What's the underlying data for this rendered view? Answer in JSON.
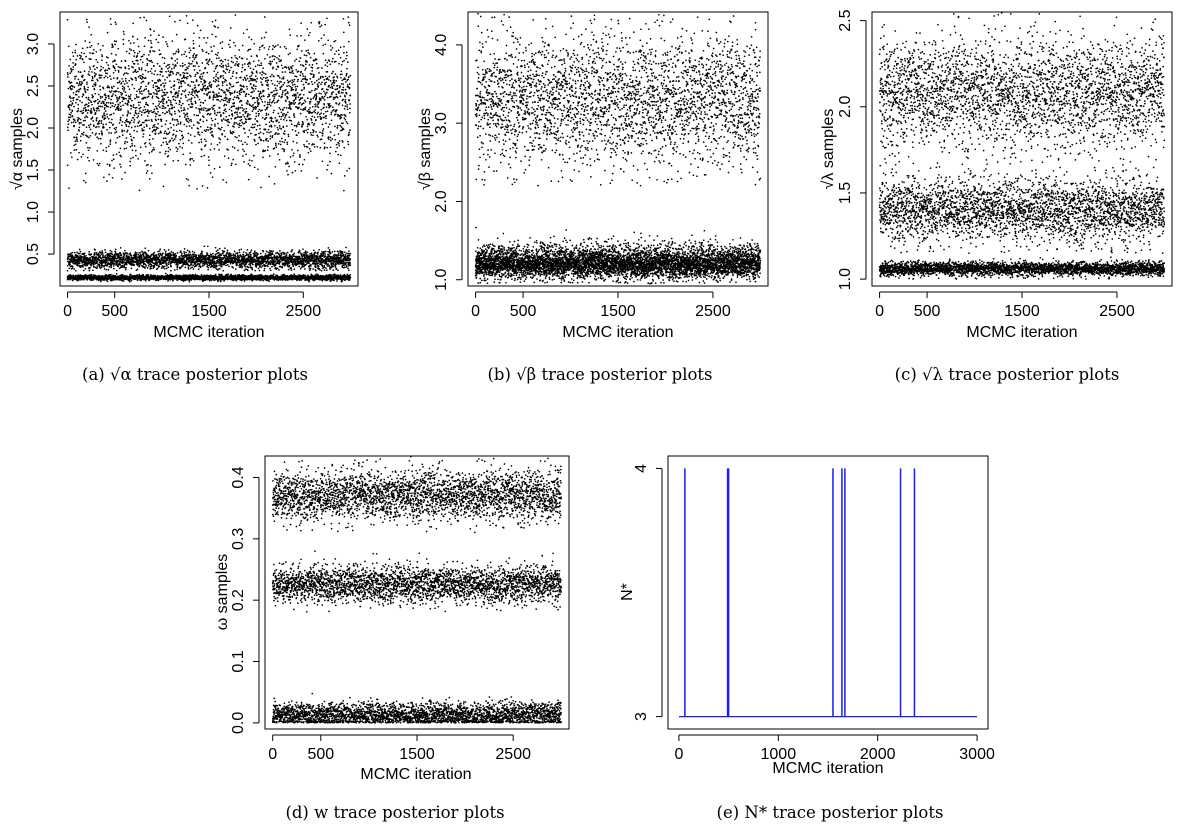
{
  "chart_data": [
    {
      "id": "a",
      "type": "scatter",
      "xlabel": "MCMC iteration",
      "ylabel": "√α samples",
      "caption": "(a) √α trace posterior plots",
      "xlim": [
        -80,
        3080
      ],
      "ylim": [
        0.12,
        3.38
      ],
      "xticks": [
        0,
        500,
        1500,
        2500
      ],
      "yticks": [
        0.5,
        1.0,
        1.5,
        2.0,
        2.5,
        3.0
      ],
      "ytick_labels": [
        "0.5",
        "1.0",
        "1.5",
        "2.0",
        "2.5",
        "3.0"
      ],
      "n_iterations": 3000,
      "color": "#000000",
      "bands": [
        {
          "center": 2.35,
          "spread": 0.38,
          "min": 1.25,
          "max": 3.35
        },
        {
          "center": 0.43,
          "spread": 0.05,
          "min": 0.3,
          "max": 0.62
        },
        {
          "center": 0.22,
          "spread": 0.015,
          "min": 0.17,
          "max": 0.27
        }
      ]
    },
    {
      "id": "b",
      "type": "scatter",
      "xlabel": "MCMC iteration",
      "ylabel": "√β samples",
      "caption": "(b) √β trace posterior plots",
      "xlim": [
        -80,
        3080
      ],
      "ylim": [
        0.92,
        4.42
      ],
      "xticks": [
        0,
        500,
        1500,
        2500
      ],
      "yticks": [
        1.0,
        2.0,
        3.0,
        4.0
      ],
      "ytick_labels": [
        "1.0",
        "2.0",
        "3.0",
        "4.0"
      ],
      "n_iterations": 3000,
      "color": "#000000",
      "bands": [
        {
          "center": 3.3,
          "spread": 0.42,
          "min": 2.2,
          "max": 4.4
        },
        {
          "center": 1.25,
          "spread": 0.11,
          "min": 0.95,
          "max": 1.75
        },
        {
          "center": 1.18,
          "spread": 0.08,
          "min": 0.95,
          "max": 1.5
        }
      ]
    },
    {
      "id": "c",
      "type": "scatter",
      "xlabel": "MCMC iteration",
      "ylabel": "√λ samples",
      "caption": "(c) √λ trace posterior plots",
      "xlim": [
        -80,
        3080
      ],
      "ylim": [
        0.96,
        2.55
      ],
      "xticks": [
        0,
        500,
        1500,
        2500
      ],
      "yticks": [
        1.0,
        1.5,
        2.0,
        2.5
      ],
      "ytick_labels": [
        "1.0",
        "1.5",
        "2.0",
        "2.5"
      ],
      "n_iterations": 3000,
      "color": "#000000",
      "bands": [
        {
          "center": 2.07,
          "spread": 0.16,
          "min": 1.6,
          "max": 2.55
        },
        {
          "center": 1.4,
          "spread": 0.09,
          "min": 1.15,
          "max": 1.72
        },
        {
          "center": 1.06,
          "spread": 0.02,
          "min": 1.0,
          "max": 1.13
        }
      ]
    },
    {
      "id": "d",
      "type": "scatter",
      "xlabel": "MCMC iteration",
      "ylabel": "ω samples",
      "caption": "(d) w trace posterior plots",
      "xlim": [
        -80,
        3080
      ],
      "ylim": [
        -0.01,
        0.435
      ],
      "xticks": [
        0,
        500,
        1500,
        2500
      ],
      "yticks": [
        0.0,
        0.1,
        0.2,
        0.3,
        0.4
      ],
      "ytick_labels": [
        "0.0",
        "0.1",
        "0.2",
        "0.3",
        "0.4"
      ],
      "n_iterations": 3000,
      "color": "#000000",
      "bands": [
        {
          "center": 0.37,
          "spread": 0.02,
          "min": 0.31,
          "max": 0.435
        },
        {
          "center": 0.225,
          "spread": 0.015,
          "min": 0.17,
          "max": 0.28
        },
        {
          "center": 0.012,
          "spread": 0.01,
          "min": 0.0,
          "max": 0.06
        }
      ]
    },
    {
      "id": "e",
      "type": "line",
      "xlabel": "MCMC iteration",
      "ylabel": "N*",
      "caption": "(e) N* trace posterior plots",
      "xlim": [
        -110,
        3110
      ],
      "ylim": [
        2.95,
        4.05
      ],
      "xticks": [
        0,
        1000,
        2000,
        3000
      ],
      "xtick_labels": [
        "0",
        "1000",
        "2000",
        "3000"
      ],
      "yticks": [
        3,
        4
      ],
      "ytick_labels": [
        "3",
        "4"
      ],
      "baseline": 3,
      "spike_value": 4,
      "spikes_at": [
        60,
        490,
        500,
        1550,
        1640,
        1670,
        2230,
        2370
      ],
      "color": "#1a1aff"
    }
  ]
}
